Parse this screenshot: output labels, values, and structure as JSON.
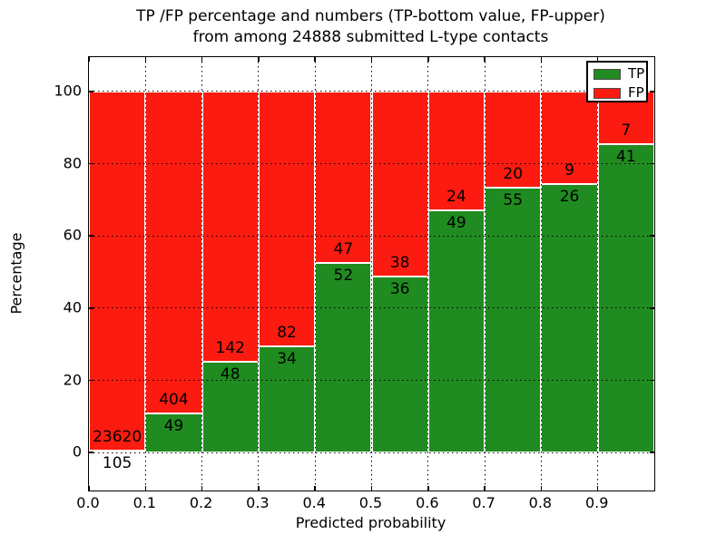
{
  "title": {
    "line1": "TP /FP percentage and numbers (TP-bottom value, FP-upper)",
    "line2": "from among 24888 submitted L-type contacts"
  },
  "chart_data": {
    "type": "bar",
    "stacked": true,
    "normalized_to_percent": true,
    "title": "TP /FP percentage and numbers (TP-bottom value, FP-upper) from among 24888 submitted L-type contacts",
    "total_submitted": 24888,
    "categories": [
      "0.0-0.1",
      "0.1-0.2",
      "0.2-0.3",
      "0.3-0.4",
      "0.4-0.5",
      "0.5-0.6",
      "0.6-0.7",
      "0.7-0.8",
      "0.8-0.9",
      "0.9-1.0"
    ],
    "bin_centers": [
      0.05,
      0.15,
      0.25,
      0.35,
      0.45,
      0.55,
      0.65,
      0.75,
      0.85,
      0.95
    ],
    "series": [
      {
        "name": "TP",
        "color": "#208b20",
        "counts": [
          105,
          49,
          48,
          34,
          52,
          36,
          49,
          55,
          26,
          41
        ]
      },
      {
        "name": "FP",
        "color": "#fb1b10",
        "counts": [
          23620,
          404,
          142,
          82,
          47,
          38,
          24,
          20,
          9,
          7
        ]
      }
    ],
    "xlabel": "Predicted probability",
    "ylabel": "Percentage",
    "xticks": [
      "0.0",
      "0.1",
      "0.2",
      "0.3",
      "0.4",
      "0.5",
      "0.6",
      "0.7",
      "0.8",
      "0.9"
    ],
    "yticks": [
      0,
      20,
      40,
      60,
      80,
      100
    ],
    "xlim": [
      0.0,
      1.0
    ],
    "ylim": [
      -10.5,
      109.5
    ],
    "grid": "dotted",
    "legend": {
      "position": "upper right",
      "entries": [
        "TP",
        "FP"
      ]
    }
  }
}
